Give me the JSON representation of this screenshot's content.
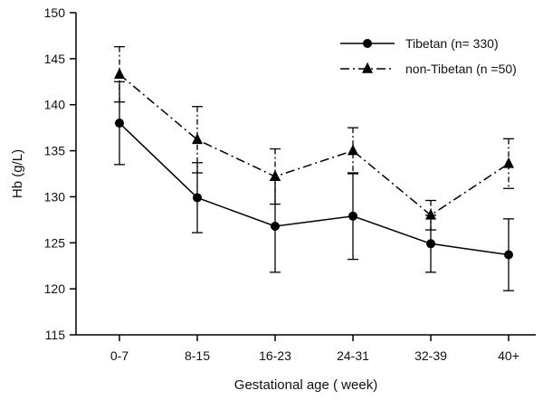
{
  "chart_data": {
    "type": "line",
    "title": "",
    "xlabel": "Gestational age ( week)",
    "ylabel": "Hb (g/L)",
    "categories": [
      "0-7",
      "8-15",
      "16-23",
      "24-31",
      "32-39",
      "40+"
    ],
    "ylim": [
      115,
      150
    ],
    "yticks": [
      115,
      120,
      125,
      130,
      135,
      140,
      145,
      150
    ],
    "grid": false,
    "legend_position": "top-right",
    "series": [
      {
        "name": "Tibetan (n= 330)",
        "marker": "circle",
        "line_style": "solid",
        "color": "#000000",
        "values": [
          138.0,
          129.9,
          126.8,
          127.9,
          124.9,
          123.7
        ],
        "error": [
          4.5,
          3.8,
          5.0,
          4.7,
          3.1,
          3.9
        ]
      },
      {
        "name": "non-Tibetan (n =50)",
        "marker": "triangle",
        "line_style": "dash-dot",
        "color": "#000000",
        "values": [
          143.3,
          136.2,
          132.2,
          135.0,
          128.0,
          133.6
        ],
        "error": [
          3.0,
          3.6,
          3.0,
          2.5,
          1.6,
          2.7
        ]
      }
    ]
  }
}
